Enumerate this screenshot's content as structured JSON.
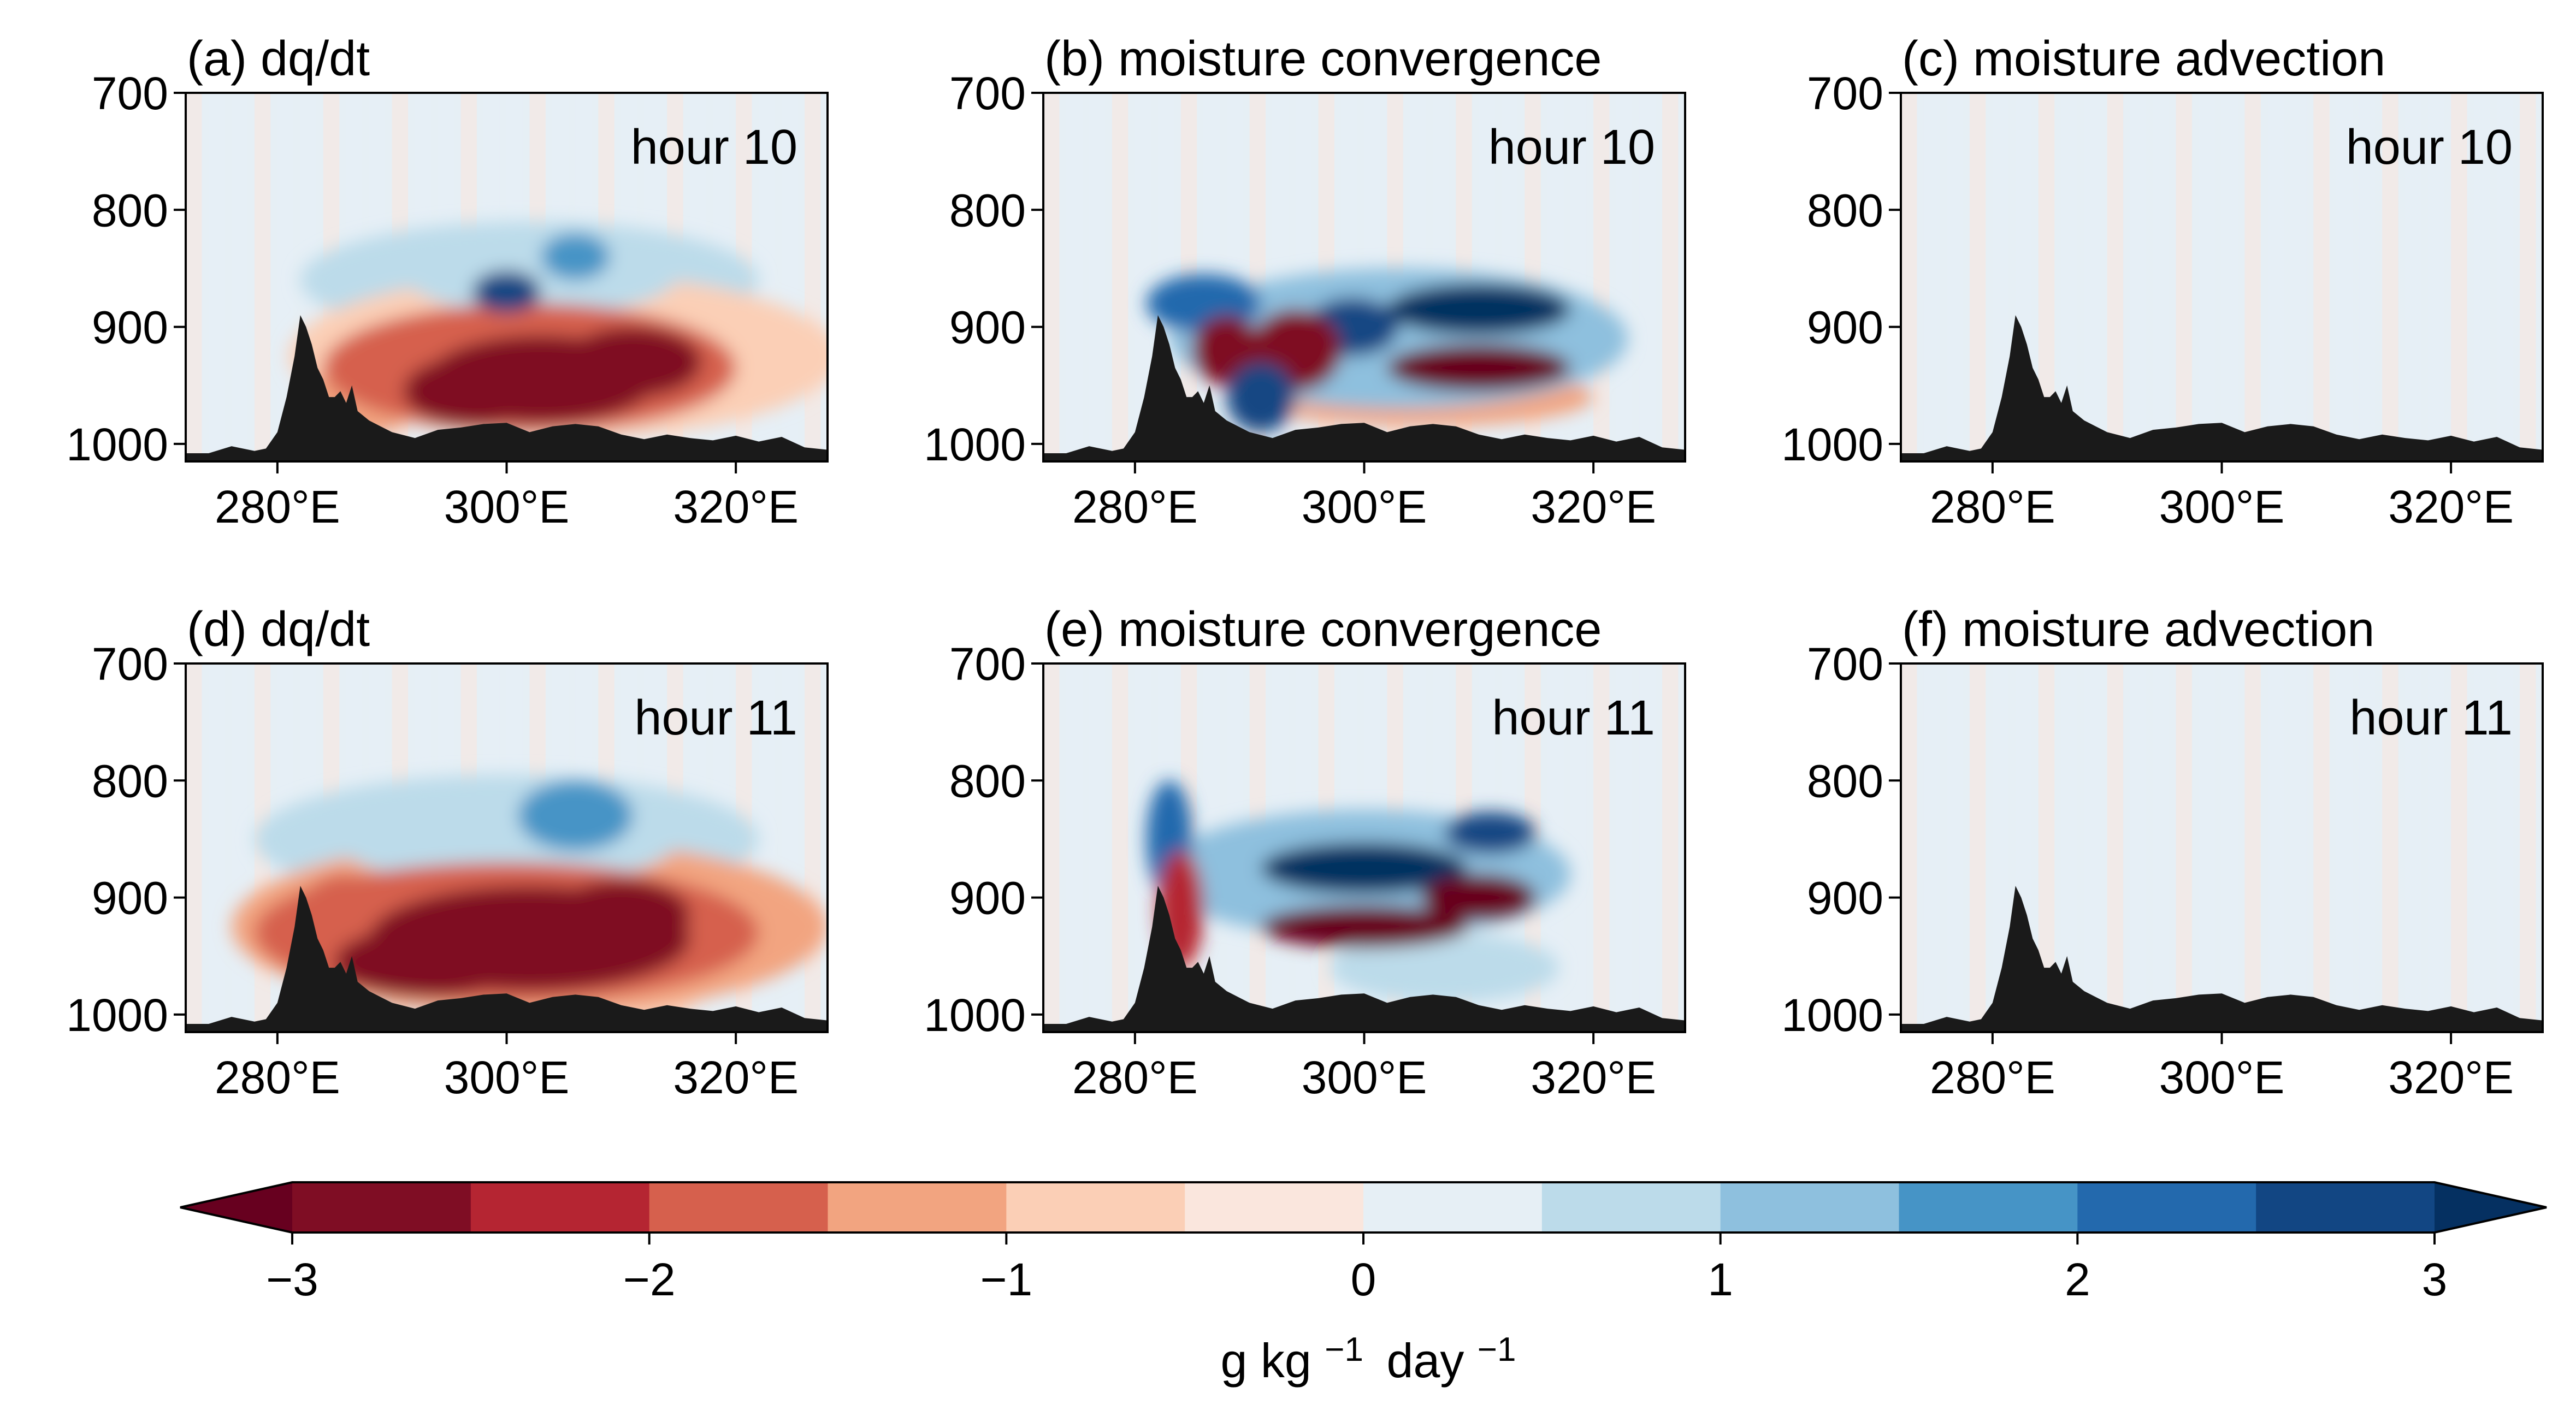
{
  "chart_data": [
    {
      "type": "heatmap",
      "panel": "a",
      "title": "(a) dq/dt",
      "annotation": "hour 10",
      "x_ticks": [
        "280°E",
        "300°E",
        "320°E"
      ],
      "x_tick_values": [
        280,
        300,
        320
      ],
      "y_ticks": [
        "700",
        "800",
        "900",
        "1000"
      ],
      "y_tick_values": [
        700,
        800,
        900,
        1000
      ],
      "xlim": [
        272,
        328
      ],
      "ylim": [
        1015,
        700
      ],
      "blobs": [
        {
          "x": 303,
          "y": 945,
          "rx": 10,
          "ry": 38,
          "value": -3
        },
        {
          "x": 297,
          "y": 955,
          "rx": 6,
          "ry": 30,
          "value": -2.5
        },
        {
          "x": 311,
          "y": 930,
          "rx": 6,
          "ry": 30,
          "value": -2.5
        },
        {
          "x": 302,
          "y": 935,
          "rx": 18,
          "ry": 55,
          "value": -1.7
        },
        {
          "x": 305,
          "y": 925,
          "rx": 24,
          "ry": 70,
          "value": -0.9
        },
        {
          "x": 287,
          "y": 965,
          "rx": 5,
          "ry": 30,
          "value": -1.2
        },
        {
          "x": 300,
          "y": 870,
          "rx": 3,
          "ry": 18,
          "value": 2.6
        },
        {
          "x": 306,
          "y": 840,
          "rx": 3,
          "ry": 20,
          "value": 1.8
        },
        {
          "x": 303,
          "y": 855,
          "rx": 12,
          "ry": 35,
          "value": 1.0
        },
        {
          "x": 302,
          "y": 860,
          "rx": 20,
          "ry": 50,
          "value": 0.6
        }
      ]
    },
    {
      "type": "heatmap",
      "panel": "b",
      "title": "(b) moisture convergence",
      "annotation": "hour 10",
      "x_ticks": [
        "280°E",
        "300°E",
        "320°E"
      ],
      "x_tick_values": [
        280,
        300,
        320
      ],
      "y_ticks": [
        "700",
        "800",
        "900",
        "1000"
      ],
      "y_tick_values": [
        700,
        800,
        900,
        1000
      ],
      "xlim": [
        272,
        328
      ],
      "ylim": [
        1015,
        700
      ],
      "blobs": [
        {
          "x": 310,
          "y": 885,
          "rx": 8,
          "ry": 22,
          "value": 3.2
        },
        {
          "x": 310,
          "y": 935,
          "rx": 8,
          "ry": 20,
          "value": -3.2
        },
        {
          "x": 299,
          "y": 900,
          "rx": 4,
          "ry": 25,
          "value": 3.0
        },
        {
          "x": 294,
          "y": 920,
          "rx": 4,
          "ry": 35,
          "value": -3.0
        },
        {
          "x": 291,
          "y": 960,
          "rx": 3,
          "ry": 30,
          "value": 3.0
        },
        {
          "x": 288,
          "y": 920,
          "rx": 3,
          "ry": 30,
          "value": -2.5
        },
        {
          "x": 286,
          "y": 880,
          "rx": 5,
          "ry": 25,
          "value": 2.2
        },
        {
          "x": 303,
          "y": 910,
          "rx": 20,
          "ry": 60,
          "value": 1.2
        },
        {
          "x": 305,
          "y": 960,
          "rx": 15,
          "ry": 25,
          "value": -1.0
        }
      ]
    },
    {
      "type": "heatmap",
      "panel": "c",
      "title": "(c) moisture advection",
      "annotation": "hour 10",
      "x_ticks": [
        "280°E",
        "300°E",
        "320°E"
      ],
      "x_tick_values": [
        280,
        300,
        320
      ],
      "y_ticks": [
        "700",
        "800",
        "900",
        "1000"
      ],
      "y_tick_values": [
        700,
        800,
        900,
        1000
      ],
      "xlim": [
        272,
        328
      ],
      "ylim": [
        1015,
        700
      ],
      "blobs": []
    },
    {
      "type": "heatmap",
      "panel": "d",
      "title": "(d) dq/dt",
      "annotation": "hour 11",
      "x_ticks": [
        "280°E",
        "300°E",
        "320°E"
      ],
      "x_tick_values": [
        280,
        300,
        320
      ],
      "y_ticks": [
        "700",
        "800",
        "900",
        "1000"
      ],
      "y_tick_values": [
        700,
        800,
        900,
        1000
      ],
      "xlim": [
        272,
        328
      ],
      "ylim": [
        1015,
        700
      ],
      "blobs": [
        {
          "x": 302,
          "y": 935,
          "rx": 14,
          "ry": 45,
          "value": -3
        },
        {
          "x": 293,
          "y": 955,
          "rx": 8,
          "ry": 30,
          "value": -3
        },
        {
          "x": 310,
          "y": 915,
          "rx": 6,
          "ry": 30,
          "value": -2.5
        },
        {
          "x": 300,
          "y": 930,
          "rx": 22,
          "ry": 60,
          "value": -1.8
        },
        {
          "x": 302,
          "y": 925,
          "rx": 26,
          "ry": 75,
          "value": -1.0
        },
        {
          "x": 286,
          "y": 930,
          "rx": 5,
          "ry": 50,
          "value": -1.6
        },
        {
          "x": 312,
          "y": 965,
          "rx": 6,
          "ry": 40,
          "value": -0.8
        },
        {
          "x": 306,
          "y": 830,
          "rx": 5,
          "ry": 30,
          "value": 1.6
        },
        {
          "x": 300,
          "y": 850,
          "rx": 15,
          "ry": 40,
          "value": 1.0
        },
        {
          "x": 300,
          "y": 850,
          "rx": 22,
          "ry": 55,
          "value": 0.6
        }
      ]
    },
    {
      "type": "heatmap",
      "panel": "e",
      "title": "(e) moisture convergence",
      "annotation": "hour 11",
      "x_ticks": [
        "280°E",
        "300°E",
        "320°E"
      ],
      "x_tick_values": [
        280,
        300,
        320
      ],
      "y_ticks": [
        "700",
        "800",
        "900",
        "1000"
      ],
      "y_tick_values": [
        700,
        800,
        900,
        1000
      ],
      "xlim": [
        272,
        328
      ],
      "ylim": [
        1015,
        700
      ],
      "blobs": [
        {
          "x": 300,
          "y": 875,
          "rx": 9,
          "ry": 22,
          "value": 3.2
        },
        {
          "x": 311,
          "y": 845,
          "rx": 4,
          "ry": 18,
          "value": 2.6
        },
        {
          "x": 300,
          "y": 925,
          "rx": 9,
          "ry": 18,
          "value": -3.2
        },
        {
          "x": 310,
          "y": 900,
          "rx": 5,
          "ry": 20,
          "value": -3.2
        },
        {
          "x": 283,
          "y": 850,
          "rx": 2,
          "ry": 50,
          "value": 2.4
        },
        {
          "x": 284,
          "y": 910,
          "rx": 2,
          "ry": 50,
          "value": -2.4
        },
        {
          "x": 300,
          "y": 880,
          "rx": 18,
          "ry": 55,
          "value": 1.1
        },
        {
          "x": 307,
          "y": 960,
          "rx": 10,
          "ry": 30,
          "value": 0.8
        }
      ]
    },
    {
      "type": "heatmap",
      "panel": "f",
      "title": "(f) moisture advection",
      "annotation": "hour 11",
      "x_ticks": [
        "280°E",
        "300°E",
        "320°E"
      ],
      "x_tick_values": [
        280,
        300,
        320
      ],
      "y_ticks": [
        "700",
        "800",
        "900",
        "1000"
      ],
      "y_tick_values": [
        700,
        800,
        900,
        1000
      ],
      "xlim": [
        272,
        328
      ],
      "ylim": [
        1015,
        700
      ],
      "blobs": []
    }
  ],
  "terrain": {
    "lon": [
      272,
      274,
      276,
      278,
      279,
      280,
      280.8,
      281.5,
      282,
      282.5,
      283,
      283.5,
      284,
      284.5,
      285,
      285.5,
      286,
      286.5,
      287,
      288,
      289,
      290,
      292,
      294,
      296,
      298,
      300,
      302,
      304,
      306,
      308,
      310,
      312,
      314,
      316,
      318,
      320,
      322,
      324,
      326,
      328
    ],
    "pressure": [
      1008,
      1008,
      1002,
      1006,
      1004,
      990,
      960,
      925,
      890,
      900,
      915,
      935,
      945,
      960,
      960,
      955,
      965,
      950,
      972,
      980,
      985,
      990,
      995,
      988,
      986,
      983,
      982,
      990,
      985,
      983,
      985,
      992,
      996,
      992,
      995,
      997,
      993,
      998,
      994,
      1003,
      1005
    ],
    "color": "#1a1a1a"
  },
  "colorbar": {
    "levels": [
      -3,
      -2.5,
      -2,
      -1.5,
      -1,
      -0.5,
      0,
      0.5,
      1,
      1.5,
      2,
      2.5,
      3
    ],
    "colors": [
      "#7f0d24",
      "#b52532",
      "#d6604d",
      "#f2a480",
      "#fbcfb6",
      "#fae6dd",
      "#e6eff5",
      "#bcdbea",
      "#8ec0de",
      "#4694c6",
      "#2369ad",
      "#124683"
    ],
    "under_color": "#67001f",
    "over_color": "#053061",
    "tick_labels": [
      "−3",
      "−2",
      "−1",
      "0",
      "1",
      "2",
      "3"
    ],
    "tick_values": [
      -3,
      -2,
      -1,
      0,
      1,
      2,
      3
    ],
    "label": "g kg −1 day −1",
    "label_parts": {
      "g": "g kg",
      "exp1": "−1",
      "day": "day",
      "exp2": "−1"
    }
  }
}
